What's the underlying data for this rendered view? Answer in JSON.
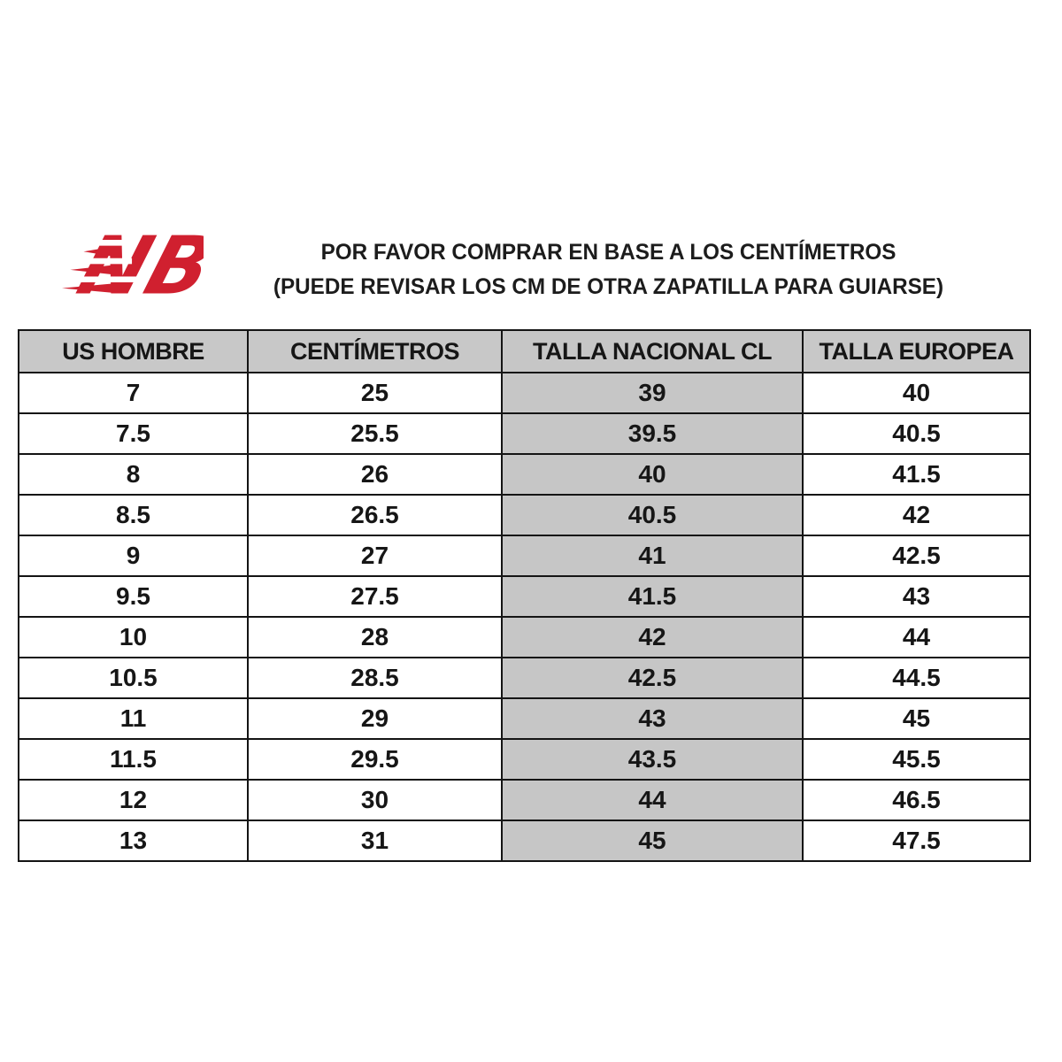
{
  "logo": {
    "name": "new-balance-logo",
    "color": "#d0202f"
  },
  "title": {
    "line1": "POR FAVOR COMPRAR EN BASE A LOS CENTÍMETROS",
    "line2": "(PUEDE REVISAR LOS CM DE OTRA ZAPATILLA PARA GUIARSE)"
  },
  "table": {
    "headers": [
      "US HOMBRE",
      "CENTÍMETROS",
      "TALLA NACIONAL CL",
      "TALLA EUROPEA"
    ],
    "highlight_column_index": 2,
    "rows": [
      [
        "7",
        "25",
        "39",
        "40"
      ],
      [
        "7.5",
        "25.5",
        "39.5",
        "40.5"
      ],
      [
        "8",
        "26",
        "40",
        "41.5"
      ],
      [
        "8.5",
        "26.5",
        "40.5",
        "42"
      ],
      [
        "9",
        "27",
        "41",
        "42.5"
      ],
      [
        "9.5",
        "27.5",
        "41.5",
        "43"
      ],
      [
        "10",
        "28",
        "42",
        "44"
      ],
      [
        "10.5",
        "28.5",
        "42.5",
        "44.5"
      ],
      [
        "11",
        "29",
        "43",
        "45"
      ],
      [
        "11.5",
        "29.5",
        "43.5",
        "45.5"
      ],
      [
        "12",
        "30",
        "44",
        "46.5"
      ],
      [
        "13",
        "31",
        "45",
        "47.5"
      ]
    ],
    "colors": {
      "header_bg": "#c8c8c8",
      "highlight_col_bg": "#c6c6c6",
      "border": "#141414"
    }
  }
}
